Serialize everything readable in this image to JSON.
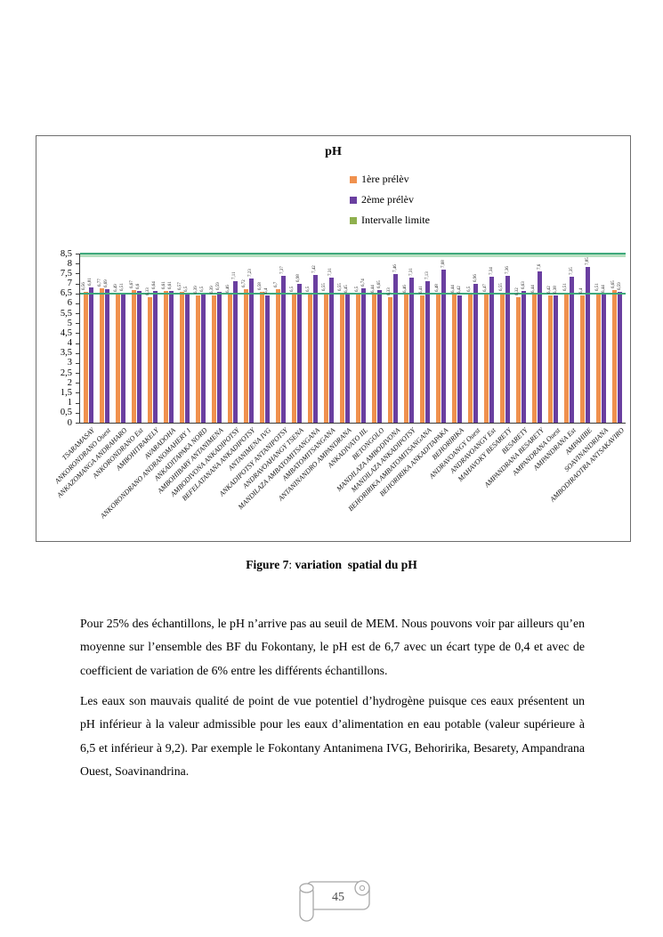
{
  "figure": {
    "caption_prefix": "Figure 7",
    "caption_separator": ": ",
    "caption_text": "variation  spatial du pH"
  },
  "paragraphs": {
    "p1": "Pour 25% des échantillons, le pH n’arrive pas au seuil de MEM. Nous pouvons voir par ailleurs qu’en moyenne sur l’ensemble des BF du Fokontany, le pH est de 6,7 avec un écart type de 0,4 et avec de coefficient de variation de 6% entre les différents échantillons.",
    "p2": "Les eaux son mauvais qualité de point de vue potentiel d’hydrogène puisque ces eaux présentent un pH inférieur à la valeur admissible pour les eaux d’alimentation en eau potable (valeur supérieure à 6,5 et inférieur à 9,2). Par exemple le Fokontany Antanimena IVG, Behoririka, Besarety, Ampandrana Ouest, Soavinandrina."
  },
  "page_number": "45",
  "chart_data": {
    "type": "bar",
    "title": "pH",
    "categories": [
      "TSARAMASAY",
      "ANKORONDRANO Ouest",
      "ANKAZOMANGA ANDRAHARO",
      "ANKORONDRANO Est",
      "AMBOHITRAKELY",
      "AVARADOHA",
      "ANKORONDRANO ANDRANOMAHERY 1",
      "ANKADITAPAKA NORD",
      "AMBOHIBARY ANTANIMENA",
      "AMBODIVONA ANKADIPOTSY",
      "BEFELATANANA ANKADIPOTSY",
      "ANTANIMENA IVG",
      "ANKADIPOTSY ANTANIPOTSY",
      "ANDRAVOAHANGY TSENA",
      "MANDILAZA AMBATOMITSANGANA",
      "AMBATOMITSANGANA",
      "ANTANINANDRO AMPANDRANA",
      "ANKADIVATO IIL",
      "BETONGOLO",
      "MANDILAZA AMBODIVONA",
      "MANDILAZA ANKADIPOTSY",
      "BEHORIRIKA AMBATOMITSANGANA",
      "BEHORIRIKA ANKADITAPAKA",
      "BEHORIRIKA",
      "ANDRAVOANGY Ouest",
      "ANDRAVOANGY Est",
      "MAHAVOKY BESARETY",
      "BESARETY",
      "AMPANDRANA BESARETY",
      "AMPANDRANA Ouest",
      "AMPANDRANA Est",
      "AMPAHIBE",
      "SOAVINANDRIANA",
      "AMBODIRAOTRA ANTSAKAVIRO"
    ],
    "series": [
      {
        "name": "1ère prélèv",
        "color": "#F0914E",
        "values": [
          6.56,
          6.77,
          6.49,
          6.67,
          6.33,
          6.61,
          6.57,
          6.39,
          6.39,
          6.46,
          6.72,
          6.58,
          6.7,
          6.5,
          6.5,
          6.55,
          6.55,
          6.5,
          6.44,
          6.33,
          6.46,
          6.41,
          6.48,
          6.44,
          6.5,
          6.47,
          6.55,
          6.32,
          6.44,
          6.42,
          6.51,
          6.4,
          6.51,
          6.65
        ]
      },
      {
        "name": "2ème prélèv",
        "color": "#6A3FA0",
        "values": [
          6.81,
          6.69,
          6.51,
          6.6,
          6.64,
          6.61,
          6.5,
          6.5,
          6.59,
          7.11,
          7.23,
          6.4,
          7.37,
          6.98,
          7.42,
          7.31,
          6.45,
          6.74,
          6.65,
          7.46,
          7.31,
          7.13,
          7.68,
          6.42,
          6.96,
          7.34,
          7.36,
          6.63,
          7.6,
          6.38,
          7.35,
          7.85,
          6.44,
          6.59
        ]
      }
    ],
    "limit_series": {
      "name": "Intervalle limite",
      "legend_color": "#8FB04E",
      "line_color": "#3FA97C",
      "light_band_color": "#B7DFC0",
      "values": [
        6.5,
        8.5
      ]
    },
    "ylim": [
      0,
      8.5
    ],
    "ytick_step": 0.5,
    "ytick_labels": [
      "0",
      "0,5",
      "1",
      "1,5",
      "2",
      "2,5",
      "3",
      "3,5",
      "4",
      "4,5",
      "5",
      "5,5",
      "6",
      "6,5",
      "7",
      "7,5",
      "8",
      "8,5"
    ],
    "decimal_separator": ",",
    "grid": false,
    "legend_position": "top-center-vertical",
    "xlabel": "",
    "ylabel": ""
  }
}
